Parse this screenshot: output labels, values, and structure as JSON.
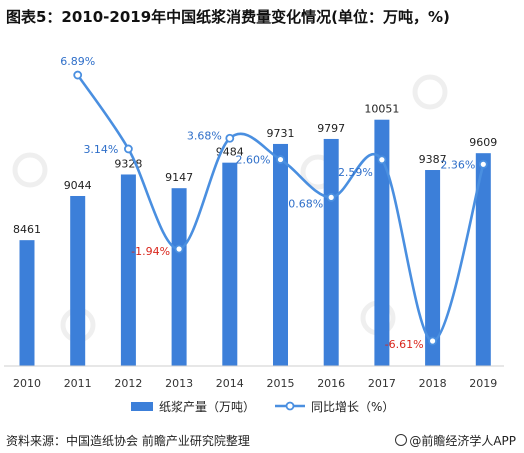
{
  "title": "图表5：2010-2019年中国纸浆消费量变化情况(单位：万吨，%)",
  "source": "资料来源：中国造纸协会 前瞻产业研究院整理",
  "brand": "@前瞻经济学人APP",
  "colors": {
    "bar": "#3C7FD9",
    "line": "#4A8FE0",
    "negative": "#D9261C",
    "positive_label": "#2F6FC9"
  },
  "chart_data": {
    "type": "bar",
    "categories": [
      "2010",
      "2011",
      "2012",
      "2013",
      "2014",
      "2015",
      "2016",
      "2017",
      "2018",
      "2019"
    ],
    "series": [
      {
        "name": "纸浆产量（万吨）",
        "type": "bar",
        "values": [
          8461,
          9044,
          9328,
          9147,
          9484,
          9731,
          9797,
          10051,
          9387,
          9609
        ],
        "labels": [
          "8461",
          "9044",
          "9328",
          "9147",
          "9484",
          "9731",
          "9797",
          "10051",
          "9387",
          "9609"
        ]
      },
      {
        "name": "同比增长（%）",
        "type": "line",
        "smooth": true,
        "values": [
          null,
          6.89,
          3.14,
          -1.94,
          3.68,
          2.6,
          0.68,
          2.59,
          -6.61,
          2.36
        ],
        "labels": [
          null,
          "6.89%",
          "3.14%",
          "-1.94%",
          "3.68%",
          "2.60%",
          "0.68%",
          "2.59%",
          "-6.61%",
          "2.36%"
        ]
      }
    ],
    "grid": false,
    "legend": "bottom"
  }
}
